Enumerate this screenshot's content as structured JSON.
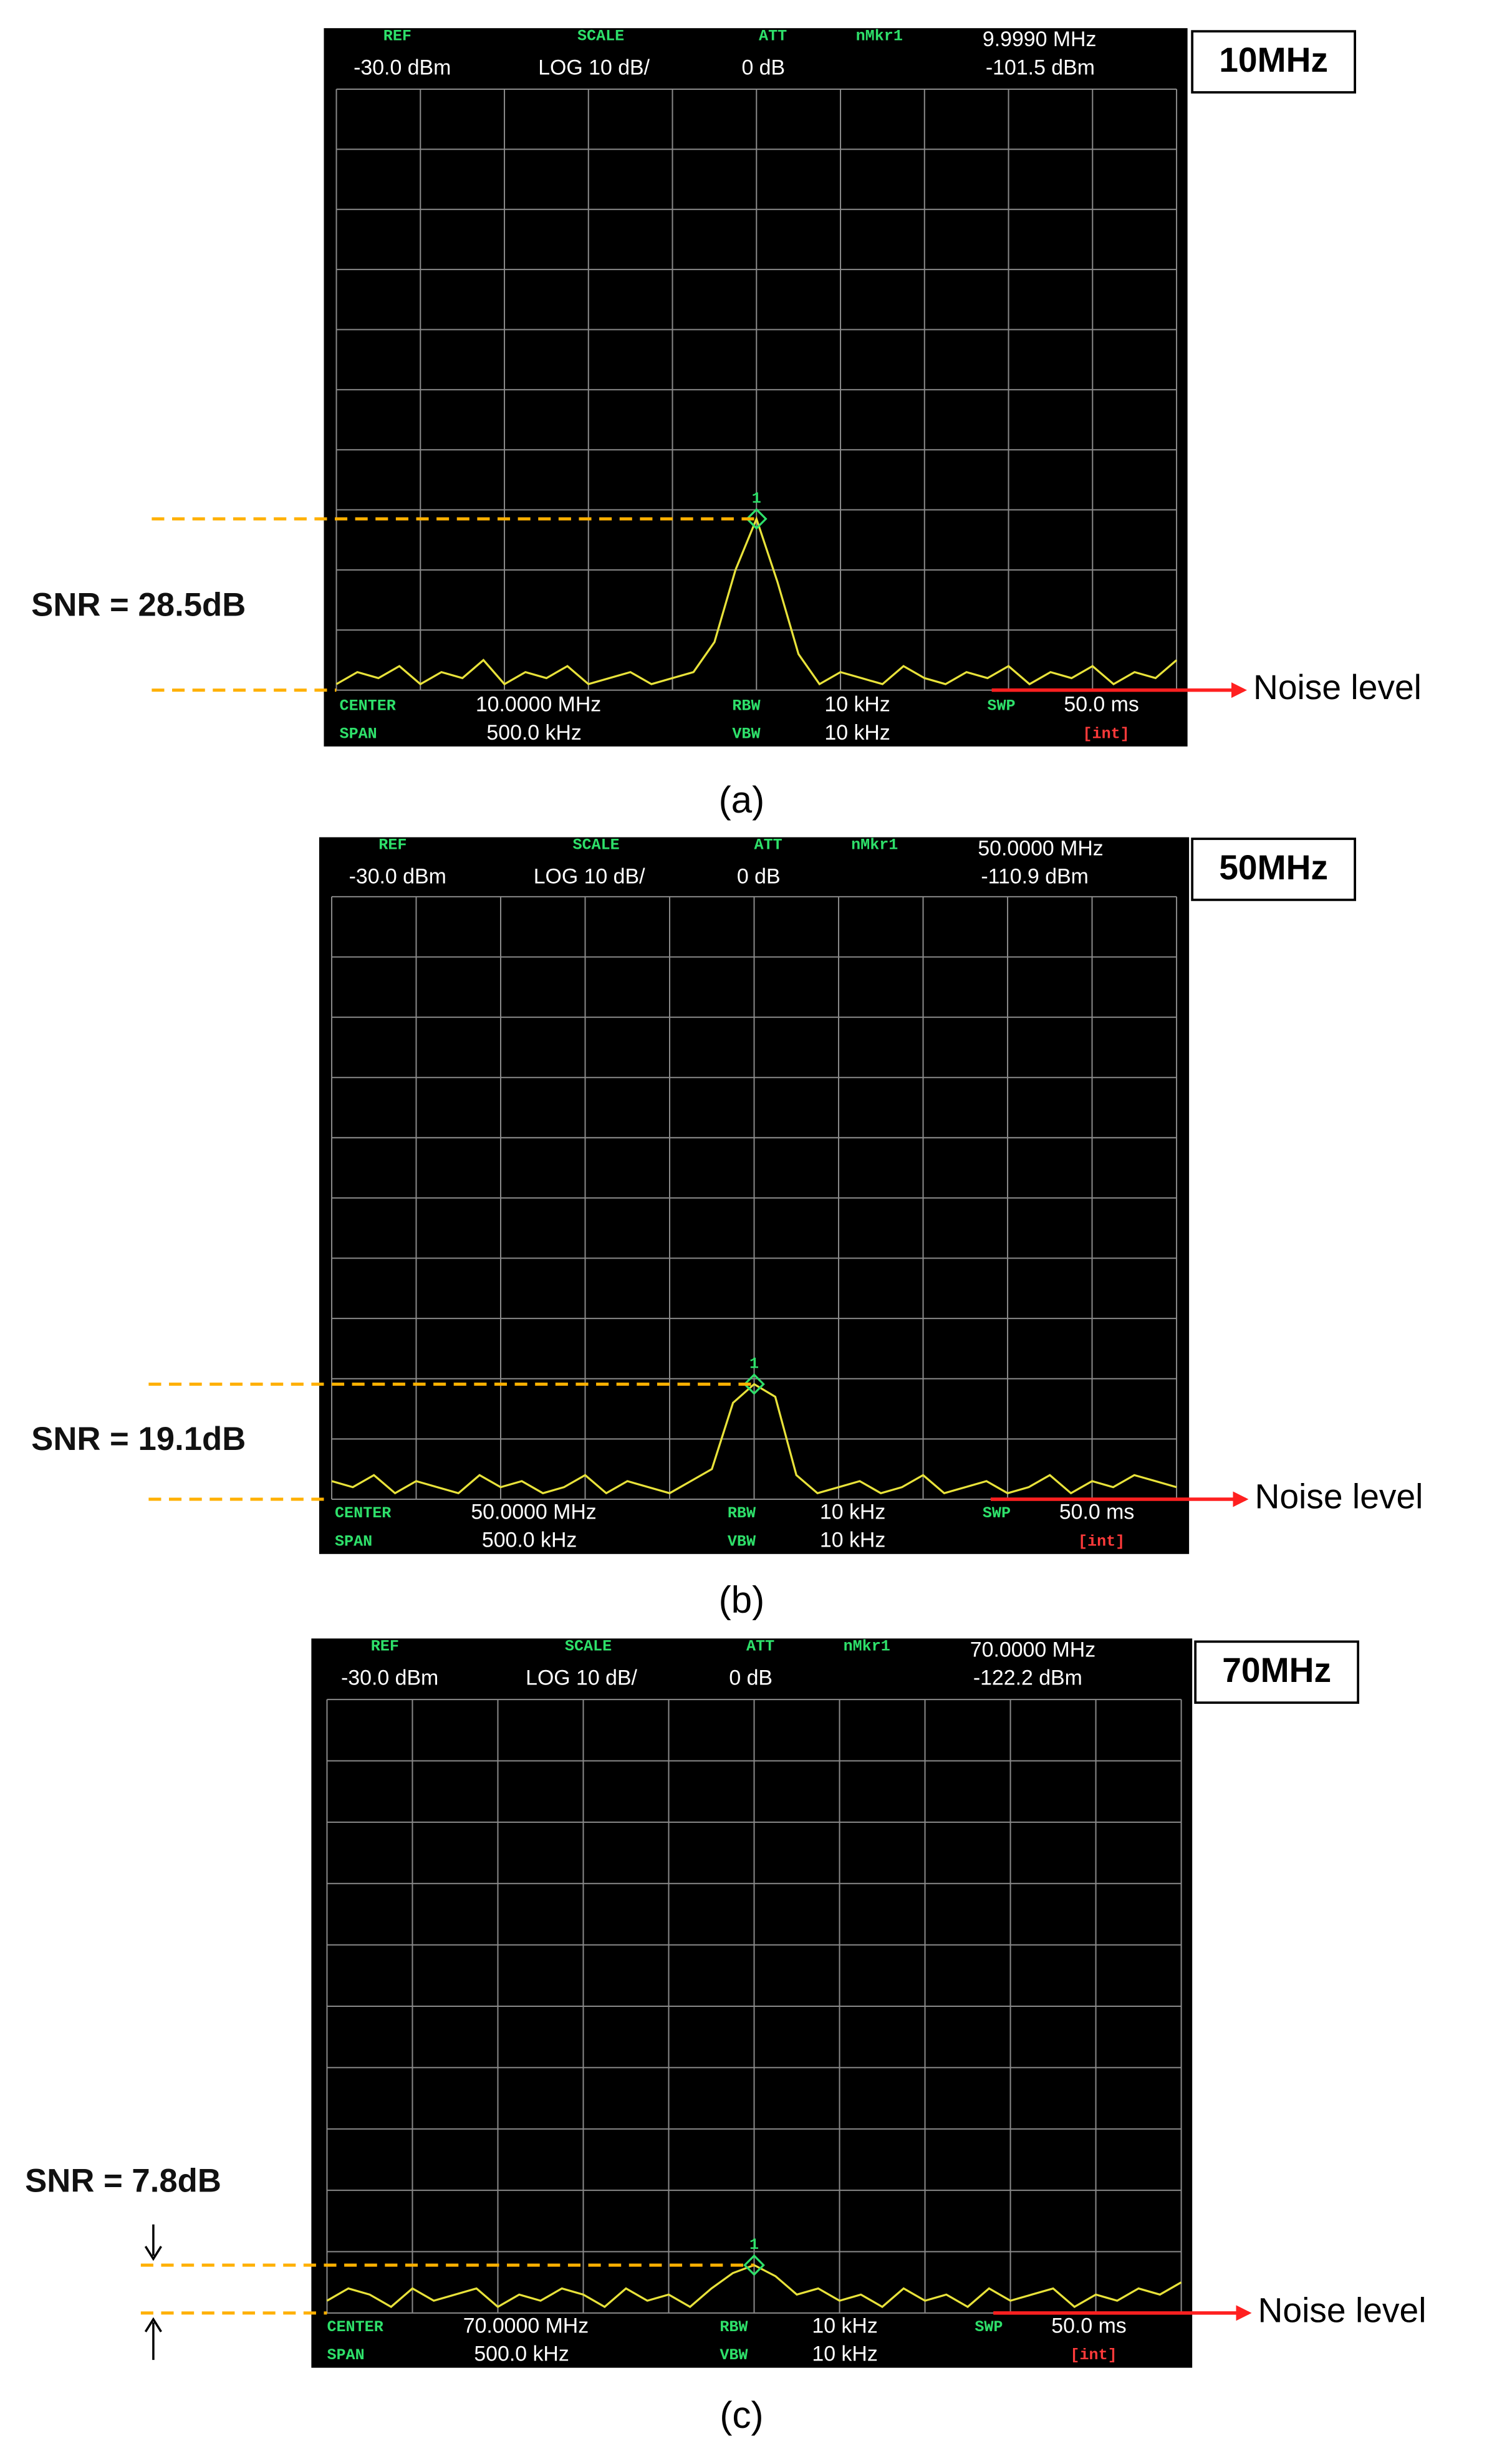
{
  "chart_data": [
    {
      "type": "line",
      "title": "10MHz",
      "caption": "(a)",
      "snr": "SNR = 28.5dB",
      "noise_label": "Noise level",
      "marker_number": "1",
      "header": {
        "ref_label": "REF",
        "ref_value": "-30.0 dBm",
        "scale_label": "SCALE",
        "scale_value": "LOG 10 dB/",
        "att_label": "ATT",
        "att_value": "0 dB",
        "marker_label": "nMkr1",
        "marker_freq": "9.9990 MHz",
        "marker_level": "-101.5 dBm"
      },
      "footer": {
        "center_label": "CENTER",
        "center_value": "10.0000 MHz",
        "span_label": "SPAN",
        "span_value": "500.0 kHz",
        "rbw_label": "RBW",
        "rbw_value": "10 kHz",
        "vbw_label": "VBW",
        "vbw_value": "10 kHz",
        "swp_label": "SWP",
        "swp_value": "50.0 ms",
        "int_label": "[int]"
      },
      "x": [
        9.75,
        9.7625,
        9.775,
        9.7875,
        9.8,
        9.8125,
        9.825,
        9.8375,
        9.85,
        9.8625,
        9.875,
        9.8875,
        9.9,
        9.9125,
        9.925,
        9.9375,
        9.95,
        9.9625,
        9.975,
        9.9875,
        10,
        10.0125,
        10.025,
        10.0375,
        10.05,
        10.0625,
        10.075,
        10.0875,
        10.1,
        10.1125,
        10.125,
        10.1375,
        10.15,
        10.1625,
        10.175,
        10.1875,
        10.2,
        10.2125,
        10.225,
        10.2375,
        10.25
      ],
      "series": [
        {
          "color": "#e8e23a",
          "values": [
            -129,
            -127,
            -128,
            -126,
            -129,
            -127,
            -128,
            -125,
            -129,
            -127,
            -128,
            -126,
            -129,
            -128,
            -127,
            -129,
            -128,
            -127,
            -122,
            -110,
            -101.5,
            -112,
            -124,
            -129,
            -127,
            -128,
            -129,
            -126,
            -128,
            -129,
            -127,
            -128,
            -126,
            -129,
            -127,
            -128,
            -126,
            -129,
            -127,
            -128,
            -125
          ]
        }
      ],
      "xlim": [
        9.75,
        10.25
      ],
      "ylim": [
        -130,
        -30
      ],
      "grid": true
    },
    {
      "type": "line",
      "title": "50MHz",
      "caption": "(b)",
      "snr": "SNR = 19.1dB",
      "noise_label": "Noise level",
      "marker_number": "1",
      "header": {
        "ref_label": "REF",
        "ref_value": "-30.0 dBm",
        "scale_label": "SCALE",
        "scale_value": "LOG 10 dB/",
        "att_label": "ATT",
        "att_value": "0 dB",
        "marker_label": "nMkr1",
        "marker_freq": "50.0000 MHz",
        "marker_level": "-110.9 dBm"
      },
      "footer": {
        "center_label": "CENTER",
        "center_value": "50.0000 MHz",
        "span_label": "SPAN",
        "span_value": "500.0 kHz",
        "rbw_label": "RBW",
        "rbw_value": "10 kHz",
        "vbw_label": "VBW",
        "vbw_value": "10 kHz",
        "swp_label": "SWP",
        "swp_value": "50.0 ms",
        "int_label": "[int]"
      },
      "x": [
        49.75,
        49.7625,
        49.775,
        49.7875,
        49.8,
        49.8125,
        49.825,
        49.8375,
        49.85,
        49.8625,
        49.875,
        49.8875,
        49.9,
        49.9125,
        49.925,
        49.9375,
        49.95,
        49.9625,
        49.975,
        49.9875,
        50,
        50.0125,
        50.025,
        50.0375,
        50.05,
        50.0625,
        50.075,
        50.0875,
        50.1,
        50.1125,
        50.125,
        50.1375,
        50.15,
        50.1625,
        50.175,
        50.1875,
        50.2,
        50.2125,
        50.225,
        50.2375,
        50.25
      ],
      "series": [
        {
          "color": "#e8e23a",
          "values": [
            -127,
            -128,
            -126,
            -129,
            -127,
            -128,
            -129,
            -126,
            -128,
            -127,
            -129,
            -128,
            -126,
            -129,
            -127,
            -128,
            -129,
            -127,
            -125,
            -114,
            -110.9,
            -113,
            -126,
            -129,
            -128,
            -127,
            -129,
            -128,
            -126,
            -129,
            -128,
            -127,
            -129,
            -128,
            -126,
            -129,
            -127,
            -128,
            -126,
            -127,
            -128
          ]
        }
      ],
      "xlim": [
        49.75,
        50.25
      ],
      "ylim": [
        -130,
        -30
      ],
      "grid": true
    },
    {
      "type": "line",
      "title": "70MHz",
      "caption": "(c)",
      "snr": "SNR = 7.8dB",
      "noise_label": "Noise level",
      "marker_number": "1",
      "header": {
        "ref_label": "REF",
        "ref_value": "-30.0 dBm",
        "scale_label": "SCALE",
        "scale_value": "LOG 10 dB/",
        "att_label": "ATT",
        "att_value": "0 dB",
        "marker_label": "nMkr1",
        "marker_freq": "70.0000 MHz",
        "marker_level": "-122.2 dBm"
      },
      "footer": {
        "center_label": "CENTER",
        "center_value": "70.0000 MHz",
        "span_label": "SPAN",
        "span_value": "500.0 kHz",
        "rbw_label": "RBW",
        "rbw_value": "10 kHz",
        "vbw_label": "VBW",
        "vbw_value": "10 kHz",
        "swp_label": "SWP",
        "swp_value": "50.0 ms",
        "int_label": "[int]"
      },
      "x": [
        69.75,
        69.7625,
        69.775,
        69.7875,
        69.8,
        69.8125,
        69.825,
        69.8375,
        69.85,
        69.8625,
        69.875,
        69.8875,
        69.9,
        69.9125,
        69.925,
        69.9375,
        69.95,
        69.9625,
        69.975,
        69.9875,
        70,
        70.0125,
        70.025,
        70.0375,
        70.05,
        70.0625,
        70.075,
        70.0875,
        70.1,
        70.1125,
        70.125,
        70.1375,
        70.15,
        70.1625,
        70.175,
        70.1875,
        70.2,
        70.2125,
        70.225,
        70.2375,
        70.25
      ],
      "series": [
        {
          "color": "#e8e23a",
          "values": [
            -128,
            -126,
            -127,
            -129,
            -126,
            -128,
            -127,
            -126,
            -129,
            -127,
            -128,
            -126,
            -127,
            -129,
            -126,
            -128,
            -127,
            -129,
            -126,
            -123.5,
            -122.2,
            -124,
            -127,
            -126,
            -128,
            -127,
            -129,
            -126,
            -128,
            -127,
            -129,
            -126,
            -128,
            -127,
            -126,
            -129,
            -127,
            -128,
            -126,
            -127,
            -125
          ]
        }
      ],
      "xlim": [
        69.75,
        70.25
      ],
      "ylim": [
        -130,
        -30
      ],
      "grid": true
    }
  ]
}
